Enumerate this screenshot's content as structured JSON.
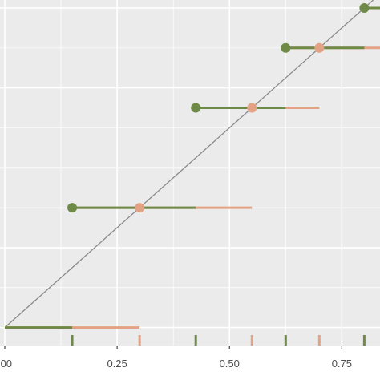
{
  "chart_data": {
    "type": "line",
    "title": "",
    "xlabel": "",
    "ylabel": "",
    "x_ticks": [
      {
        "value": 0.0,
        "label": ".00"
      },
      {
        "value": 0.25,
        "label": "0.25"
      },
      {
        "value": 0.5,
        "label": "0.50"
      },
      {
        "value": 0.75,
        "label": "0.75"
      }
    ],
    "xlim": [
      0.0,
      0.835
    ],
    "ylim": [
      -0.045,
      0.82
    ],
    "y_major": [
      0.0,
      0.2,
      0.4,
      0.6,
      0.8
    ],
    "grid": true,
    "legend": "none",
    "colors": {
      "panel": "#ebebeb",
      "grid": "#ffffff",
      "green": "#6e8a46",
      "salmon": "#e4a284",
      "diagonal": "#8a8a8a"
    },
    "diagonal": [
      [
        0.0,
        0.0
      ],
      [
        0.835,
        0.835
      ]
    ],
    "steps": [
      {
        "y": 0.0,
        "green_start": 0.0,
        "green_end": 0.15,
        "salmon_end": 0.3,
        "green_dot": false
      },
      {
        "y": 0.3,
        "green_start": 0.15,
        "green_end": 0.425,
        "salmon_end": 0.55,
        "green_dot": true
      },
      {
        "y": 0.55,
        "green_start": 0.425,
        "green_end": 0.625,
        "salmon_end": 0.7,
        "green_dot": true
      },
      {
        "y": 0.7,
        "green_start": 0.625,
        "green_end": 0.8,
        "salmon_end": 0.835,
        "green_dot": true
      },
      {
        "y": 0.8,
        "green_start": 0.8,
        "green_end": 0.835,
        "salmon_end": 0.835,
        "green_dot": true
      }
    ],
    "salmon_points": [
      {
        "x": 0.3,
        "y": 0.3
      },
      {
        "x": 0.55,
        "y": 0.55
      },
      {
        "x": 0.7,
        "y": 0.7
      }
    ],
    "rug": {
      "green": [
        0.15,
        0.425,
        0.625,
        0.8
      ],
      "salmon": [
        0.3,
        0.55,
        0.7
      ]
    }
  }
}
